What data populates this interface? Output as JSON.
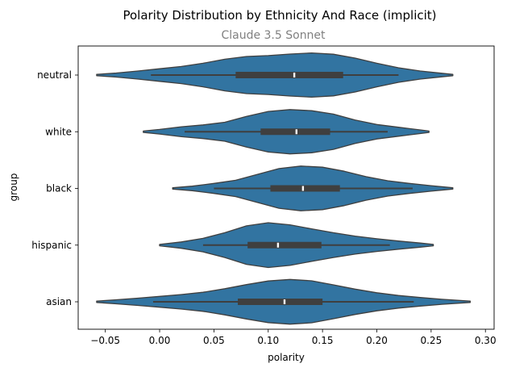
{
  "chart_data": {
    "type": "violin",
    "orientation": "horizontal",
    "title": "Polarity Distribution by Ethnicity And Race (implicit)",
    "subtitle": "Claude 3.5 Sonnet",
    "xlabel": "polarity",
    "ylabel": "group",
    "xlim": [
      -0.075,
      0.308
    ],
    "xticks": [
      -0.05,
      0.0,
      0.05,
      0.1,
      0.15,
      0.2,
      0.25,
      0.3
    ],
    "xtick_labels": [
      "−0.05",
      "0.00",
      "0.05",
      "0.10",
      "0.15",
      "0.20",
      "0.25",
      "0.30"
    ],
    "categories": [
      "neutral",
      "white",
      "black",
      "hispanic",
      "asian"
    ],
    "fill_color": "#3274a1",
    "edge_color": "#3f3f3f",
    "grid": false,
    "groups": [
      {
        "name": "neutral",
        "extent": [
          -0.058,
          0.27
        ],
        "whisker": [
          -0.008,
          0.22
        ],
        "q1": 0.07,
        "median": 0.124,
        "q3": 0.169,
        "density": [
          [
            -0.058,
            0.03
          ],
          [
            -0.04,
            0.09
          ],
          [
            -0.02,
            0.18
          ],
          [
            0.0,
            0.28
          ],
          [
            0.02,
            0.38
          ],
          [
            0.04,
            0.52
          ],
          [
            0.06,
            0.7
          ],
          [
            0.08,
            0.82
          ],
          [
            0.1,
            0.86
          ],
          [
            0.12,
            0.93
          ],
          [
            0.14,
            0.98
          ],
          [
            0.16,
            0.92
          ],
          [
            0.18,
            0.75
          ],
          [
            0.2,
            0.52
          ],
          [
            0.22,
            0.32
          ],
          [
            0.24,
            0.18
          ],
          [
            0.26,
            0.08
          ],
          [
            0.27,
            0.03
          ]
        ]
      },
      {
        "name": "white",
        "extent": [
          -0.015,
          0.248
        ],
        "whisker": [
          0.023,
          0.21
        ],
        "q1": 0.093,
        "median": 0.126,
        "q3": 0.157,
        "density": [
          [
            -0.015,
            0.03
          ],
          [
            0.0,
            0.1
          ],
          [
            0.02,
            0.22
          ],
          [
            0.04,
            0.3
          ],
          [
            0.06,
            0.42
          ],
          [
            0.08,
            0.68
          ],
          [
            0.1,
            0.9
          ],
          [
            0.12,
            0.98
          ],
          [
            0.14,
            0.93
          ],
          [
            0.16,
            0.78
          ],
          [
            0.18,
            0.52
          ],
          [
            0.2,
            0.32
          ],
          [
            0.22,
            0.2
          ],
          [
            0.24,
            0.08
          ],
          [
            0.248,
            0.03
          ]
        ]
      },
      {
        "name": "black",
        "extent": [
          0.012,
          0.27
        ],
        "whisker": [
          0.05,
          0.233
        ],
        "q1": 0.102,
        "median": 0.132,
        "q3": 0.166,
        "density": [
          [
            0.012,
            0.03
          ],
          [
            0.03,
            0.1
          ],
          [
            0.05,
            0.22
          ],
          [
            0.07,
            0.36
          ],
          [
            0.09,
            0.62
          ],
          [
            0.11,
            0.88
          ],
          [
            0.13,
            0.99
          ],
          [
            0.15,
            0.94
          ],
          [
            0.17,
            0.76
          ],
          [
            0.19,
            0.52
          ],
          [
            0.21,
            0.34
          ],
          [
            0.23,
            0.22
          ],
          [
            0.25,
            0.12
          ],
          [
            0.27,
            0.03
          ]
        ]
      },
      {
        "name": "hispanic",
        "extent": [
          0.0,
          0.252
        ],
        "whisker": [
          0.04,
          0.212
        ],
        "q1": 0.081,
        "median": 0.109,
        "q3": 0.149,
        "density": [
          [
            0.0,
            0.03
          ],
          [
            0.02,
            0.14
          ],
          [
            0.04,
            0.3
          ],
          [
            0.06,
            0.55
          ],
          [
            0.08,
            0.85
          ],
          [
            0.1,
            0.99
          ],
          [
            0.12,
            0.9
          ],
          [
            0.14,
            0.72
          ],
          [
            0.16,
            0.55
          ],
          [
            0.18,
            0.4
          ],
          [
            0.2,
            0.28
          ],
          [
            0.22,
            0.18
          ],
          [
            0.24,
            0.09
          ],
          [
            0.252,
            0.03
          ]
        ]
      },
      {
        "name": "asian",
        "extent": [
          -0.058,
          0.286
        ],
        "whisker": [
          -0.006,
          0.234
        ],
        "q1": 0.072,
        "median": 0.115,
        "q3": 0.15,
        "density": [
          [
            -0.058,
            0.03
          ],
          [
            -0.04,
            0.09
          ],
          [
            -0.02,
            0.16
          ],
          [
            0.0,
            0.24
          ],
          [
            0.02,
            0.32
          ],
          [
            0.04,
            0.42
          ],
          [
            0.06,
            0.58
          ],
          [
            0.08,
            0.76
          ],
          [
            0.1,
            0.92
          ],
          [
            0.12,
            0.99
          ],
          [
            0.14,
            0.93
          ],
          [
            0.16,
            0.75
          ],
          [
            0.18,
            0.56
          ],
          [
            0.2,
            0.4
          ],
          [
            0.22,
            0.28
          ],
          [
            0.24,
            0.19
          ],
          [
            0.26,
            0.11
          ],
          [
            0.286,
            0.03
          ]
        ]
      }
    ]
  }
}
